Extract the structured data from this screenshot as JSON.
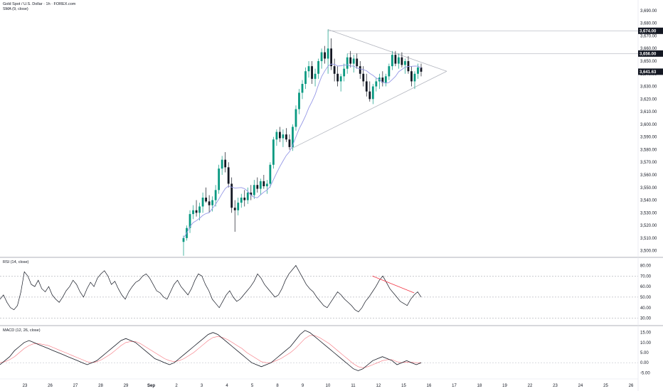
{
  "header": {
    "title": "Gold Spot / U.S. Dollar · 1h · FOREX.com",
    "indicator_label": "SMA (9, close)"
  },
  "price_labels": {
    "resistance_top": "3,674.00",
    "resistance_mid": "3,656.00",
    "current": "3,641.63"
  },
  "colors": {
    "up": "#089981",
    "down": "#131722",
    "sma": "#9598e6",
    "current_badge": "#131722",
    "trendline": "#b2b5be",
    "rsi_line": "#131722",
    "rsi_trend": "#f23645",
    "macd_line": "#131722",
    "signal_line": "#f23645"
  },
  "chart_data": [
    {
      "type": "candlestick",
      "title": "Gold Spot / U.S. Dollar · 1h · FOREX.com",
      "series": [
        {
          "name": "SMA (9, close)",
          "role": "overlay"
        }
      ],
      "x_ticks": [
        "23",
        "26",
        "27",
        "28",
        "29",
        "Sep",
        "2",
        "3",
        "4",
        "5",
        "8",
        "9",
        "10",
        "11",
        "12",
        "15",
        "16",
        "17",
        "18",
        "19",
        "22",
        "23",
        "24",
        "25",
        "26"
      ],
      "y_ticks": [
        "3,690.00",
        "3,680.00",
        "3,670.00",
        "3,660.00",
        "3,650.00",
        "3,640.00",
        "3,630.00",
        "3,620.00",
        "3,610.00",
        "3,600.00",
        "3,590.00",
        "3,580.00",
        "3,570.00",
        "3,560.00",
        "3,550.00",
        "3,540.00",
        "3,530.00",
        "3,520.00",
        "3,510.00",
        "3,500.00"
      ],
      "ylim": [
        3497,
        3695
      ],
      "key_prices": [
        {
          "label": "resistance_top",
          "value": 3674.0
        },
        {
          "label": "resistance_mid",
          "value": 3656.0
        },
        {
          "label": "current",
          "value": 3641.63
        }
      ],
      "pattern": "symmetrical triangle",
      "triangle_points": [
        {
          "x": "9 12:00",
          "y": 3675
        },
        {
          "x": "9 00:00",
          "y": 3580
        },
        {
          "x": "16",
          "y": 3642
        }
      ],
      "candles": [
        [
          3507,
          3512,
          3496,
          3510
        ],
        [
          3510,
          3520,
          3508,
          3518
        ],
        [
          3518,
          3532,
          3514,
          3529
        ],
        [
          3529,
          3536,
          3525,
          3532
        ],
        [
          3532,
          3540,
          3527,
          3530
        ],
        [
          3530,
          3538,
          3524,
          3535
        ],
        [
          3535,
          3546,
          3530,
          3542
        ],
        [
          3542,
          3550,
          3538,
          3539
        ],
        [
          3539,
          3544,
          3530,
          3536
        ],
        [
          3536,
          3543,
          3531,
          3540
        ],
        [
          3540,
          3552,
          3535,
          3548
        ],
        [
          3548,
          3568,
          3545,
          3565
        ],
        [
          3565,
          3575,
          3560,
          3572
        ],
        [
          3572,
          3578,
          3562,
          3566
        ],
        [
          3566,
          3570,
          3550,
          3553
        ],
        [
          3553,
          3558,
          3530,
          3534
        ],
        [
          3534,
          3540,
          3515,
          3532
        ],
        [
          3532,
          3542,
          3528,
          3538
        ],
        [
          3538,
          3545,
          3534,
          3542
        ],
        [
          3542,
          3548,
          3535,
          3540
        ],
        [
          3540,
          3550,
          3537,
          3546
        ],
        [
          3546,
          3552,
          3540,
          3544
        ],
        [
          3544,
          3556,
          3541,
          3552
        ],
        [
          3552,
          3558,
          3546,
          3549
        ],
        [
          3549,
          3557,
          3544,
          3555
        ],
        [
          3555,
          3560,
          3549,
          3551
        ],
        [
          3551,
          3556,
          3545,
          3553
        ],
        [
          3553,
          3570,
          3550,
          3568
        ],
        [
          3568,
          3590,
          3565,
          3588
        ],
        [
          3588,
          3596,
          3583,
          3594
        ],
        [
          3594,
          3598,
          3586,
          3589
        ],
        [
          3589,
          3596,
          3582,
          3592
        ],
        [
          3592,
          3597,
          3586,
          3588
        ],
        [
          3588,
          3592,
          3580,
          3582
        ],
        [
          3582,
          3600,
          3579,
          3598
        ],
        [
          3598,
          3615,
          3595,
          3612
        ],
        [
          3612,
          3628,
          3608,
          3625
        ],
        [
          3625,
          3635,
          3620,
          3632
        ],
        [
          3632,
          3645,
          3628,
          3642
        ],
        [
          3642,
          3650,
          3637,
          3646
        ],
        [
          3646,
          3650,
          3632,
          3636
        ],
        [
          3636,
          3644,
          3630,
          3640
        ],
        [
          3640,
          3652,
          3636,
          3650
        ],
        [
          3650,
          3660,
          3644,
          3657
        ],
        [
          3657,
          3662,
          3648,
          3652
        ],
        [
          3652,
          3675,
          3640,
          3660
        ],
        [
          3660,
          3668,
          3643,
          3646
        ],
        [
          3646,
          3652,
          3634,
          3640
        ],
        [
          3640,
          3646,
          3630,
          3634
        ],
        [
          3634,
          3640,
          3626,
          3638
        ],
        [
          3638,
          3648,
          3634,
          3644
        ],
        [
          3644,
          3656,
          3640,
          3653
        ],
        [
          3653,
          3658,
          3645,
          3648
        ],
        [
          3648,
          3655,
          3641,
          3652
        ],
        [
          3652,
          3656,
          3644,
          3646
        ],
        [
          3646,
          3650,
          3636,
          3640
        ],
        [
          3640,
          3646,
          3630,
          3634
        ],
        [
          3634,
          3640,
          3622,
          3626
        ],
        [
          3626,
          3634,
          3618,
          3620
        ],
        [
          3620,
          3632,
          3616,
          3630
        ],
        [
          3630,
          3637,
          3626,
          3634
        ],
        [
          3634,
          3640,
          3628,
          3637
        ],
        [
          3637,
          3642,
          3630,
          3633
        ],
        [
          3633,
          3640,
          3630,
          3638
        ],
        [
          3638,
          3648,
          3635,
          3646
        ],
        [
          3646,
          3658,
          3643,
          3655
        ],
        [
          3655,
          3658,
          3646,
          3648
        ],
        [
          3648,
          3656,
          3644,
          3653
        ],
        [
          3653,
          3657,
          3645,
          3647
        ],
        [
          3647,
          3652,
          3640,
          3650
        ],
        [
          3650,
          3654,
          3640,
          3642
        ],
        [
          3642,
          3646,
          3630,
          3634
        ],
        [
          3634,
          3642,
          3628,
          3640
        ],
        [
          3640,
          3648,
          3636,
          3645
        ],
        [
          3645,
          3648,
          3638,
          3641.63
        ]
      ]
    },
    {
      "type": "line",
      "title": "RSI (14, close)",
      "series": [
        {
          "name": "RSI (14, close)"
        }
      ],
      "y_ticks": [
        "80.00",
        "70.00",
        "60.00",
        "50.00",
        "40.00",
        "30.00"
      ],
      "ylim": [
        25,
        85
      ],
      "levels": [
        70,
        50,
        30
      ],
      "values": [
        48,
        52,
        45,
        40,
        38,
        42,
        55,
        74,
        70,
        62,
        60,
        66,
        58,
        55,
        60,
        52,
        48,
        45,
        50,
        56,
        60,
        66,
        62,
        55,
        50,
        58,
        64,
        60,
        68,
        72,
        75,
        70,
        62,
        65,
        58,
        52,
        48,
        55,
        60,
        64,
        66,
        70,
        72,
        68,
        62,
        56,
        54,
        50,
        48,
        55,
        62,
        66,
        60,
        56,
        52,
        58,
        66,
        72,
        70,
        62,
        56,
        48,
        44,
        40,
        46,
        52,
        56,
        50,
        46,
        48,
        52,
        56,
        60,
        65,
        72,
        68,
        62,
        58,
        54,
        50,
        52,
        58,
        66,
        72,
        76,
        80,
        74,
        68,
        62,
        58,
        55,
        50,
        46,
        42,
        40,
        45,
        50,
        55,
        52,
        48,
        45,
        42,
        38,
        36,
        40,
        46,
        50,
        55,
        60,
        66,
        70,
        64,
        58,
        54,
        50,
        46,
        44,
        42,
        48,
        52,
        55,
        50
      ],
      "trendline": {
        "from_index": 107,
        "to_index": 119,
        "from_value": 70,
        "to_value": 54
      }
    },
    {
      "type": "line",
      "title": "MACD (12, 26, close)",
      "series": [
        {
          "name": "MACD (12, 26, close)"
        },
        {
          "name": "Signal"
        }
      ],
      "y_ticks": [
        "15.00",
        "10.00",
        "5.00",
        "0.00",
        "-5.00"
      ],
      "ylim": [
        -7,
        17
      ],
      "macd": [
        -1,
        1,
        3,
        6,
        8,
        10,
        11,
        10,
        9,
        8,
        7,
        6,
        5,
        4,
        3,
        2,
        1,
        0,
        -1,
        0,
        1,
        3,
        5,
        7,
        9,
        11,
        12,
        11,
        10,
        8,
        6,
        4,
        2,
        1,
        0,
        -1,
        0,
        2,
        4,
        6,
        8,
        10,
        12,
        14,
        15,
        14,
        12,
        10,
        8,
        6,
        4,
        2,
        0,
        -1,
        -2,
        -1,
        0,
        2,
        4,
        6,
        8,
        11,
        14,
        16,
        15,
        13,
        11,
        9,
        7,
        5,
        3,
        1,
        -1,
        -3,
        -4,
        -3,
        -1,
        1,
        2,
        3,
        2,
        1,
        -1,
        0,
        1,
        0,
        -1,
        0
      ],
      "signal": [
        0,
        0.5,
        1.5,
        3,
        5,
        7,
        8.5,
        9.5,
        9.5,
        9,
        8.5,
        7.5,
        6.5,
        5.5,
        4.5,
        3.5,
        2.5,
        1.5,
        0.5,
        0,
        0.5,
        1.5,
        3,
        4.5,
        6.5,
        8.5,
        10,
        10.5,
        10.5,
        9.5,
        8,
        6.5,
        5,
        3.5,
        2,
        1,
        0.5,
        1,
        2,
        3.5,
        5,
        7,
        9,
        11,
        12.5,
        13,
        12.5,
        11.5,
        10,
        8.5,
        7,
        5,
        3.5,
        2,
        0.5,
        0,
        0,
        1,
        2,
        3.5,
        5,
        7,
        9.5,
        12,
        13.5,
        13.5,
        12.5,
        11,
        9.5,
        7.5,
        5.5,
        3.5,
        1.5,
        -0.5,
        -2,
        -2.5,
        -2,
        -1,
        0,
        1,
        1.5,
        1.5,
        0.5,
        0,
        0.3,
        0.2,
        0,
        0
      ]
    }
  ]
}
